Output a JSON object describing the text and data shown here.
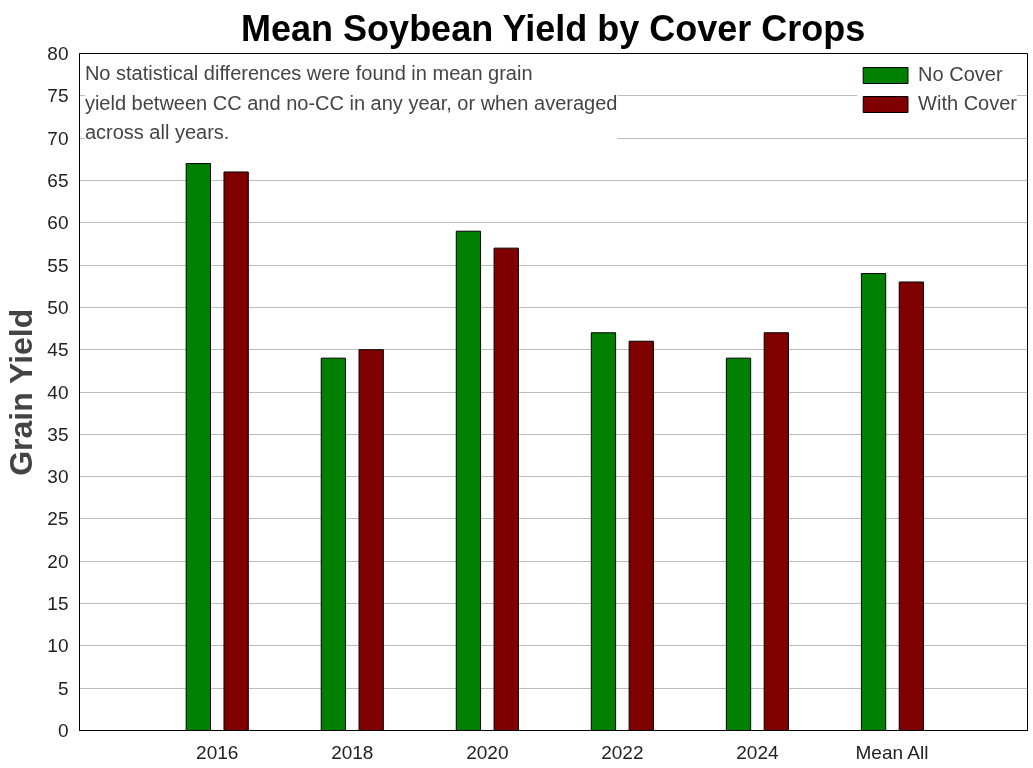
{
  "chart_data": {
    "type": "bar",
    "title": "Mean Soybean Yield by Cover Crops",
    "ylabel": "Grain Yield",
    "categories": [
      "2016",
      "2018",
      "2020",
      "2022",
      "2024",
      "Mean All"
    ],
    "series": [
      {
        "name": "No Cover",
        "color": "#008000",
        "values": [
          67,
          44,
          59,
          47,
          44,
          54
        ]
      },
      {
        "name": "With Cover",
        "color": "#800000",
        "values": [
          66,
          45,
          57,
          46,
          47,
          53
        ]
      }
    ],
    "ylim": [
      0,
      80
    ],
    "yticks": [
      0,
      5,
      10,
      15,
      20,
      25,
      30,
      35,
      40,
      45,
      50,
      55,
      60,
      65,
      70,
      75,
      80
    ],
    "grid": "y",
    "legend": "top right",
    "annotations": [
      "No statistical differences were found in mean grain yield between CC and no-CC in any year, or when averaged across all years."
    ]
  }
}
